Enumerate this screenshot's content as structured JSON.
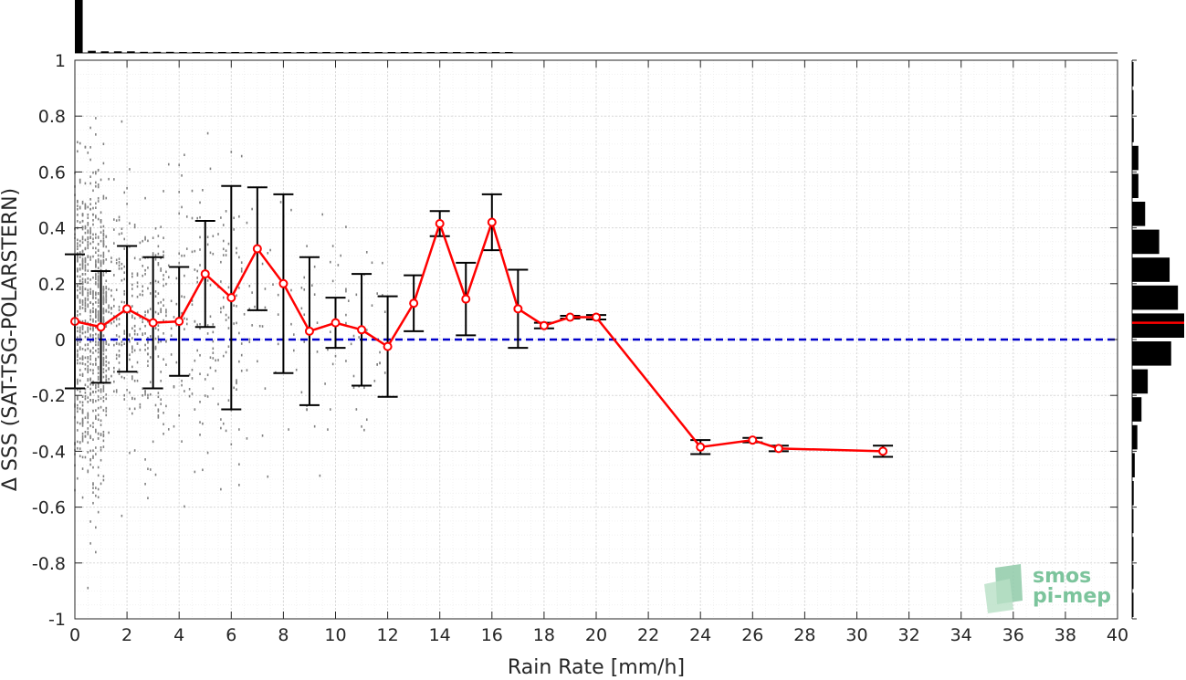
{
  "chart_data": {
    "type": "scatter",
    "xlabel": "Rain Rate [mm/h]",
    "ylabel": "Δ SSS (SAT-TSG-POLARSTERN)",
    "xlim": [
      0,
      40
    ],
    "ylim": [
      -1,
      1
    ],
    "xticks": [
      0,
      2,
      4,
      6,
      8,
      10,
      12,
      14,
      16,
      18,
      20,
      22,
      24,
      26,
      28,
      30,
      32,
      34,
      36,
      38,
      40
    ],
    "yticks": [
      -1,
      -0.8,
      -0.6,
      -0.4,
      -0.2,
      0,
      0.2,
      0.4,
      0.6,
      0.8,
      1
    ],
    "ytick_labels": [
      "-1",
      "-0.8",
      "-0.6",
      "-0.4",
      "-0.2",
      "0",
      "0.2",
      "0.4",
      "0.6",
      "0.8",
      "1"
    ],
    "grid": true,
    "reference_line": {
      "y": 0,
      "style": "dashed",
      "color": "#0000cc"
    },
    "colors": {
      "mean_line": "#ff0000",
      "error_bars": "#000000",
      "scatter": "#808080",
      "histogram": "#000000",
      "grid": "#d9d9d9"
    },
    "binned_mean": {
      "x": [
        0,
        1,
        2,
        3,
        4,
        5,
        6,
        7,
        8,
        9,
        10,
        11,
        12,
        13,
        14,
        15,
        16,
        17,
        18,
        19,
        20,
        24,
        26,
        27,
        31
      ],
      "y": [
        0.065,
        0.045,
        0.11,
        0.06,
        0.065,
        0.235,
        0.15,
        0.325,
        0.2,
        0.03,
        0.06,
        0.035,
        -0.025,
        0.13,
        0.415,
        0.145,
        0.42,
        0.11,
        0.05,
        0.08,
        0.08,
        -0.385,
        -0.36,
        -0.39,
        -0.4
      ],
      "err": [
        0.24,
        0.2,
        0.225,
        0.235,
        0.195,
        0.19,
        0.4,
        0.22,
        0.32,
        0.265,
        0.09,
        0.2,
        0.18,
        0.1,
        0.045,
        0.13,
        0.1,
        0.14,
        0.01,
        0.005,
        0.008,
        0.025,
        0.008,
        0.01,
        0.02
      ]
    },
    "histogram_x": {
      "bin_edges": [
        0,
        0.5,
        1,
        1.5,
        2,
        2.5,
        3,
        3.5,
        4,
        4.5,
        5,
        5.5,
        6,
        6.5,
        7,
        7.5,
        8,
        8.5,
        9,
        9.5,
        10,
        10.5,
        11,
        11.5,
        12,
        12.5,
        13,
        13.5,
        14,
        14.5,
        15,
        15.5,
        16,
        16.5,
        17
      ],
      "relative_counts": [
        1.0,
        0.04,
        0.03,
        0.03,
        0.03,
        0.02,
        0.02,
        0.02,
        0.015,
        0.01,
        0.01,
        0.01,
        0.01,
        0.01,
        0.01,
        0.01,
        0.01,
        0.01,
        0.01,
        0.01,
        0.01,
        0.01,
        0.01,
        0.01,
        0.01,
        0.01,
        0.01,
        0.01,
        0.01,
        0.01,
        0.01,
        0.01,
        0.01,
        0.01
      ]
    },
    "histogram_y": {
      "bin_edges": [
        -1,
        -0.9,
        -0.8,
        -0.7,
        -0.6,
        -0.5,
        -0.4,
        -0.3,
        -0.2,
        -0.1,
        0,
        0.1,
        0.2,
        0.3,
        0.4,
        0.5,
        0.6,
        0.7,
        0.8,
        0.9,
        1
      ],
      "relative_counts": [
        0.01,
        0.01,
        0.02,
        0.02,
        0.03,
        0.05,
        0.1,
        0.18,
        0.3,
        0.75,
        1.0,
        0.88,
        0.72,
        0.52,
        0.25,
        0.12,
        0.12,
        0.03,
        0.02,
        0.01
      ],
      "median_marker": 0.06
    },
    "scatter_count": 1500
  },
  "logo": {
    "line1": "smos",
    "line2": "pi-mep"
  }
}
